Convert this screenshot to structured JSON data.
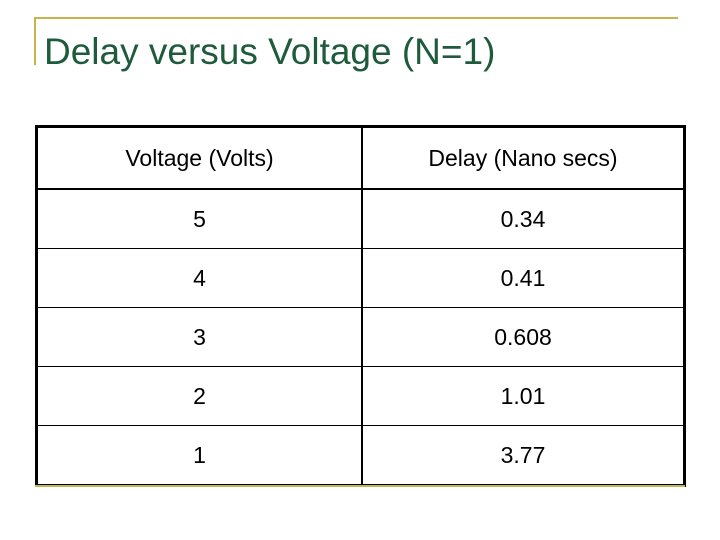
{
  "slide": {
    "title": "Delay versus Voltage (N=1)",
    "colors": {
      "title": "#1e5a3c",
      "accent": "#c8b44a",
      "border": "#000000"
    }
  },
  "table": {
    "headers": [
      "Voltage (Volts)",
      "Delay (Nano secs)"
    ],
    "rows": [
      [
        "5",
        "0.34"
      ],
      [
        "4",
        "0.41"
      ],
      [
        "3",
        "0.608"
      ],
      [
        "2",
        "1.01"
      ],
      [
        "1",
        "3.77"
      ]
    ]
  }
}
